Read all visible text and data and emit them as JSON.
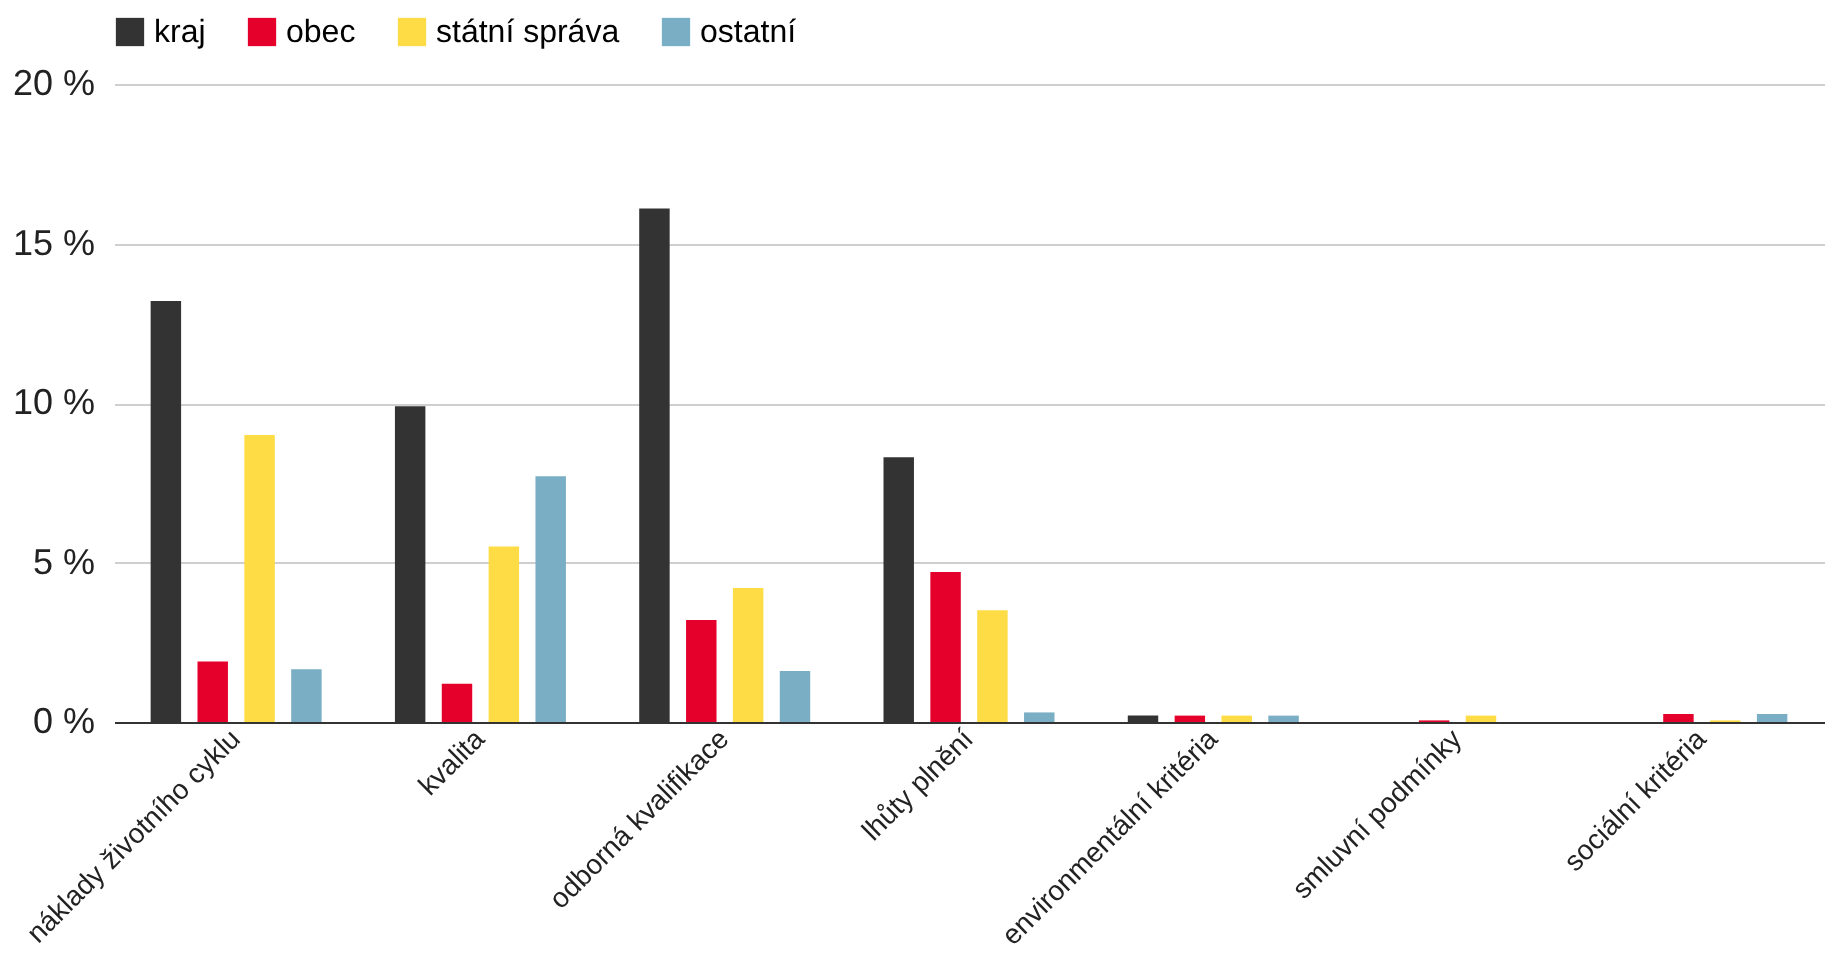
{
  "chart_data": {
    "type": "bar",
    "categories": [
      "náklady životního cyklu",
      "kvalita",
      "odborná kvalifikace",
      "lhůty plnění",
      "environmentální kritéria",
      "smluvní podmínky",
      "sociální kritéria"
    ],
    "series": [
      {
        "name": "kraj",
        "color": "#333333",
        "values": [
          13.2,
          9.9,
          16.1,
          8.3,
          0.2,
          0,
          0
        ]
      },
      {
        "name": "obec",
        "color": "#e4002b",
        "values": [
          1.9,
          1.2,
          3.2,
          4.7,
          0.2,
          0.05,
          0.25
        ]
      },
      {
        "name": "státní správa",
        "color": "#fddc45",
        "values": [
          9.0,
          5.5,
          4.2,
          3.5,
          0.2,
          0.2,
          0.05
        ]
      },
      {
        "name": "ostatní",
        "color": "#7aaec4",
        "values": [
          1.65,
          7.7,
          1.6,
          0.3,
          0.2,
          0,
          0.25
        ]
      }
    ],
    "ylim": [
      0,
      20
    ],
    "yticks": [
      {
        "value": 0,
        "label": "0 %"
      },
      {
        "value": 5,
        "label": "5 %"
      },
      {
        "value": 10,
        "label": "10 %"
      },
      {
        "value": 15,
        "label": "15 %"
      },
      {
        "value": 20,
        "label": "20 %"
      }
    ],
    "grid": "y",
    "legend": "top"
  }
}
